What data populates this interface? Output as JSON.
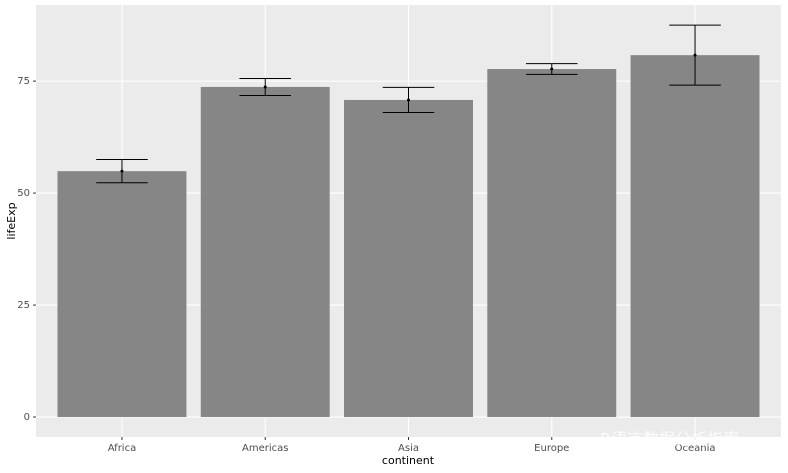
{
  "chart_data": {
    "type": "bar",
    "x_label": "continent",
    "y_label": "lifeExp",
    "categories": [
      "Africa",
      "Americas",
      "Asia",
      "Europe",
      "Oceania"
    ],
    "values": [
      54.9,
      73.7,
      70.8,
      77.7,
      80.8
    ],
    "errors": [
      2.6,
      1.9,
      2.8,
      1.2,
      6.7
    ],
    "color": "#868686",
    "ylim": [
      -4.46,
      92
    ],
    "yticks": [
      0,
      25,
      50,
      75
    ],
    "grid": true,
    "watermark": "R语言数据分析指南"
  }
}
